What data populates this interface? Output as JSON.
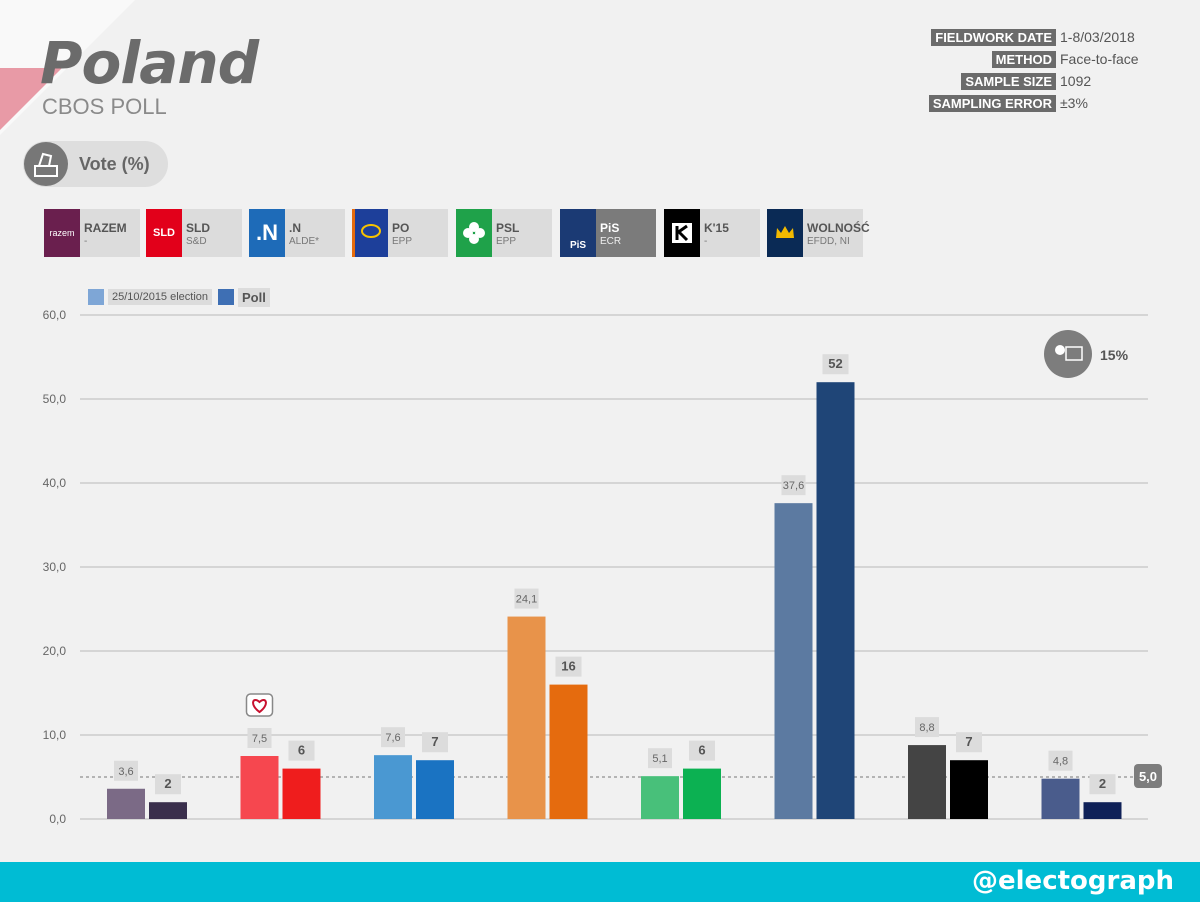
{
  "header": {
    "title": "Poland",
    "subtitle": "CBOS POLL",
    "vote_label": "Vote (%)"
  },
  "meta": [
    {
      "key": "FIELDWORK DATE",
      "value": "1-8/03/2018"
    },
    {
      "key": "METHOD",
      "value": "Face-to-face"
    },
    {
      "key": "SAMPLE SIZE",
      "value": "1092"
    },
    {
      "key": "SAMPLING ERROR",
      "value": "±3%"
    }
  ],
  "parties": [
    {
      "name": "RAZEM",
      "group": "-",
      "logo_text": "razem",
      "color": "#6a1f4e"
    },
    {
      "name": "SLD",
      "group": "S&D",
      "logo_text": "SLD",
      "color": "#e2001a"
    },
    {
      "name": ".N",
      "group": "ALDE*",
      "logo_text": ".N",
      "color": "#1e6bb8"
    },
    {
      "name": "PO",
      "group": "EPP",
      "logo_text": "",
      "color": "#e66c0d"
    },
    {
      "name": "PSL",
      "group": "EPP",
      "logo_text": "",
      "color": "#1fa24a"
    },
    {
      "name": "PiS",
      "group": "ECR",
      "logo_text": "PiS",
      "color": "#1b3a74"
    },
    {
      "name": "K'15",
      "group": "-",
      "logo_text": "K",
      "color": "#000000"
    },
    {
      "name": "WOLNOŚĆ",
      "group": "EFDD, NI",
      "logo_text": "",
      "color": "#0a2a55"
    }
  ],
  "legend": {
    "election_label": "25/10/2015 election",
    "poll_label": "Poll"
  },
  "undecided_label": "15%",
  "threshold_label": "5,0",
  "footer": {
    "handle": "@electograph"
  },
  "chart_data": {
    "type": "bar",
    "categories": [
      "RAZEM",
      "SLD",
      ".N",
      "PO",
      "PSL",
      "PiS",
      "K'15",
      "WOLNOŚĆ"
    ],
    "series": [
      {
        "name": "25/10/2015 election",
        "values": [
          3.6,
          7.5,
          7.6,
          24.1,
          5.1,
          37.6,
          8.8,
          4.8
        ],
        "labels": [
          "3,6",
          "7,5",
          "7,6",
          "24,1",
          "5,1",
          "37,6",
          "8,8",
          "4,8"
        ],
        "colors": [
          "#7b6a86",
          "#f6474f",
          "#4a98d2",
          "#e8934a",
          "#48c07a",
          "#5c7aa1",
          "#444444",
          "#4a5c8c"
        ]
      },
      {
        "name": "Poll",
        "values": [
          2,
          6,
          7,
          16,
          6,
          52,
          7,
          2
        ],
        "labels": [
          "2",
          "6",
          "7",
          "16",
          "6",
          "52",
          "7",
          "2"
        ],
        "colors": [
          "#3a2f4c",
          "#ef1d1d",
          "#1a73c2",
          "#e56b0e",
          "#0cb152",
          "#1f4577",
          "#000000",
          "#0f2158"
        ]
      }
    ],
    "ylim": [
      0,
      60
    ],
    "yticks": [
      "0,0",
      "10,0",
      "20,0",
      "30,0",
      "40,0",
      "50,0",
      "60,0"
    ],
    "threshold": 5.0,
    "grid": true
  }
}
